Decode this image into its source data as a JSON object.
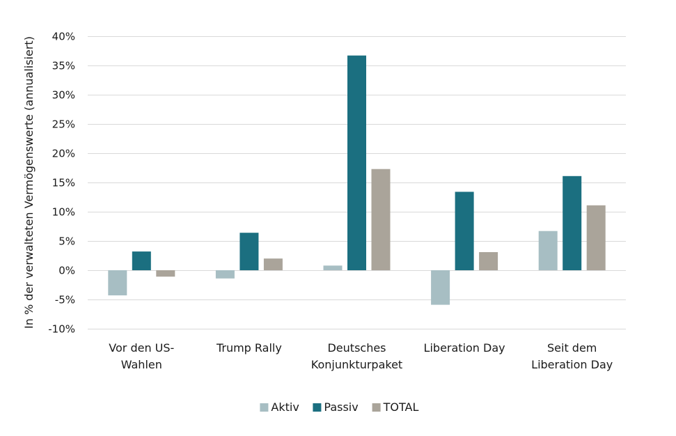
{
  "chart_data": {
    "type": "bar",
    "title": "",
    "xlabel": "",
    "ylabel": "In % der verwalteten Vermögenswerte (annualisiert)",
    "ylim": [
      -10,
      40
    ],
    "yticks": [
      -10,
      -5,
      0,
      5,
      10,
      15,
      20,
      25,
      30,
      35,
      40
    ],
    "ytick_labels": [
      "-10%",
      "-5%",
      "0%",
      "5%",
      "10%",
      "15%",
      "20%",
      "25%",
      "30%",
      "35%",
      "40%"
    ],
    "categories": [
      [
        "Vor den US-",
        "Wahlen"
      ],
      [
        "Trump Rally"
      ],
      [
        "Deutsches",
        "Konjunkturpaket"
      ],
      [
        "Liberation Day"
      ],
      [
        "Seit dem",
        "Liberation Day"
      ]
    ],
    "series": [
      {
        "name": "Aktiv",
        "color": "#a7bec3",
        "values": [
          -4.3,
          -1.4,
          0.8,
          -5.9,
          6.7
        ]
      },
      {
        "name": "Passiv",
        "color": "#1b6f80",
        "values": [
          3.2,
          6.4,
          36.7,
          13.4,
          16.1
        ]
      },
      {
        "name": "TOTAL",
        "color": "#aaa49a",
        "values": [
          -1.1,
          2.0,
          17.3,
          3.1,
          11.1
        ]
      }
    ],
    "grid": true,
    "legend": "bottom-center"
  }
}
